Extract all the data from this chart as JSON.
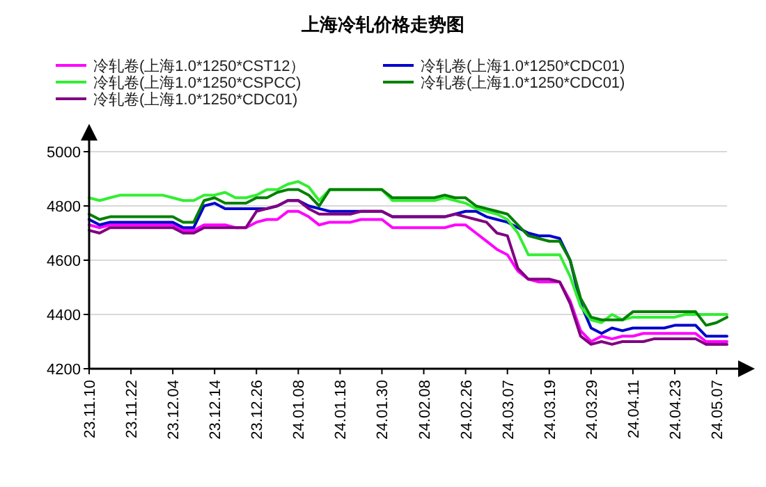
{
  "chart_data": {
    "type": "line",
    "title": "上海冷轧价格走势图",
    "categories": [
      "23.11.10",
      null,
      null,
      null,
      "23.11.22",
      null,
      null,
      null,
      "23.12.04",
      null,
      null,
      null,
      "23.12.14",
      null,
      null,
      null,
      "23.12.26",
      null,
      null,
      null,
      "24.01.08",
      null,
      null,
      null,
      "24.01.18",
      null,
      null,
      null,
      "24.01.30",
      null,
      null,
      null,
      "24.02.08",
      null,
      null,
      null,
      "24.02.26",
      null,
      null,
      null,
      "24.03.07",
      null,
      null,
      null,
      "24.03.19",
      null,
      null,
      null,
      "24.03.29",
      null,
      null,
      null,
      "24.04.11",
      null,
      null,
      null,
      "24.04.23",
      null,
      null,
      null,
      "24.05.07",
      null
    ],
    "series": [
      {
        "name": "冷轧卷(上海1.0*1250*CST12）",
        "color": "#ff00ff",
        "values": [
          4730,
          4720,
          4730,
          4730,
          4730,
          4730,
          4730,
          4730,
          4730,
          4710,
          4710,
          4730,
          4730,
          4730,
          4720,
          4720,
          4740,
          4750,
          4750,
          4780,
          4780,
          4760,
          4730,
          4740,
          4740,
          4740,
          4750,
          4750,
          4750,
          4720,
          4720,
          4720,
          4720,
          4720,
          4720,
          4730,
          4730,
          4700,
          4670,
          4640,
          4620,
          4560,
          4530,
          4520,
          4520,
          4520,
          4450,
          4340,
          4300,
          4320,
          4310,
          4320,
          4320,
          4330,
          4330,
          4330,
          4330,
          4330,
          4330,
          4300,
          4300,
          4300
        ]
      },
      {
        "name": "冷轧卷(上海1.0*1250*CDC01)",
        "color": "#0000cc",
        "values": [
          4750,
          4730,
          4740,
          4740,
          4740,
          4740,
          4740,
          4740,
          4740,
          4720,
          4720,
          4800,
          4810,
          4790,
          4790,
          4790,
          4790,
          4790,
          4800,
          4820,
          4820,
          4800,
          4790,
          4780,
          4780,
          4780,
          4780,
          4780,
          4780,
          4760,
          4760,
          4760,
          4760,
          4760,
          4760,
          4770,
          4780,
          4780,
          4760,
          4750,
          4740,
          4720,
          4700,
          4690,
          4690,
          4680,
          4600,
          4440,
          4350,
          4330,
          4350,
          4340,
          4350,
          4350,
          4350,
          4350,
          4360,
          4360,
          4360,
          4320,
          4320,
          4320
        ]
      },
      {
        "name": "冷轧卷(上海1.0*1250*CSPCC)",
        "color": "#33ee33",
        "values": [
          4830,
          4820,
          4830,
          4840,
          4840,
          4840,
          4840,
          4840,
          4830,
          4820,
          4820,
          4840,
          4840,
          4850,
          4830,
          4830,
          4840,
          4860,
          4860,
          4880,
          4890,
          4870,
          4820,
          4860,
          4860,
          4860,
          4860,
          4860,
          4860,
          4820,
          4820,
          4820,
          4820,
          4820,
          4830,
          4820,
          4810,
          4790,
          4780,
          4770,
          4750,
          4700,
          4620,
          4620,
          4620,
          4620,
          4540,
          4430,
          4380,
          4370,
          4400,
          4380,
          4390,
          4390,
          4390,
          4390,
          4390,
          4400,
          4400,
          4400,
          4400,
          4400
        ]
      },
      {
        "name": "冷轧卷(上海1.0*1250*CDC01)",
        "color": "#008000",
        "values": [
          4770,
          4750,
          4760,
          4760,
          4760,
          4760,
          4760,
          4760,
          4760,
          4740,
          4740,
          4820,
          4830,
          4810,
          4810,
          4810,
          4830,
          4830,
          4850,
          4860,
          4860,
          4840,
          4800,
          4860,
          4860,
          4860,
          4860,
          4860,
          4860,
          4830,
          4830,
          4830,
          4830,
          4830,
          4840,
          4830,
          4830,
          4800,
          4790,
          4780,
          4770,
          4730,
          4690,
          4680,
          4670,
          4670,
          4600,
          4460,
          4390,
          4380,
          4380,
          4380,
          4410,
          4410,
          4410,
          4410,
          4410,
          4410,
          4410,
          4360,
          4370,
          4390
        ]
      },
      {
        "name": "冷轧卷(上海1.0*1250*CDC01)",
        "color": "#800080",
        "values": [
          4710,
          4700,
          4720,
          4720,
          4720,
          4720,
          4720,
          4720,
          4720,
          4700,
          4700,
          4720,
          4720,
          4720,
          4720,
          4720,
          4780,
          4790,
          4800,
          4820,
          4820,
          4790,
          4770,
          4770,
          4770,
          4770,
          4780,
          4780,
          4780,
          4760,
          4760,
          4760,
          4760,
          4760,
          4760,
          4770,
          4760,
          4750,
          4740,
          4700,
          4690,
          4570,
          4530,
          4530,
          4530,
          4520,
          4440,
          4320,
          4290,
          4300,
          4290,
          4300,
          4300,
          4300,
          4310,
          4310,
          4310,
          4310,
          4310,
          4290,
          4290,
          4290
        ]
      }
    ],
    "ylim": [
      4200,
      5000
    ],
    "yticks": [
      4200,
      4400,
      4600,
      4800,
      5000
    ],
    "grid": "y",
    "legend": "top",
    "marker": "none",
    "line_style": "solid"
  }
}
